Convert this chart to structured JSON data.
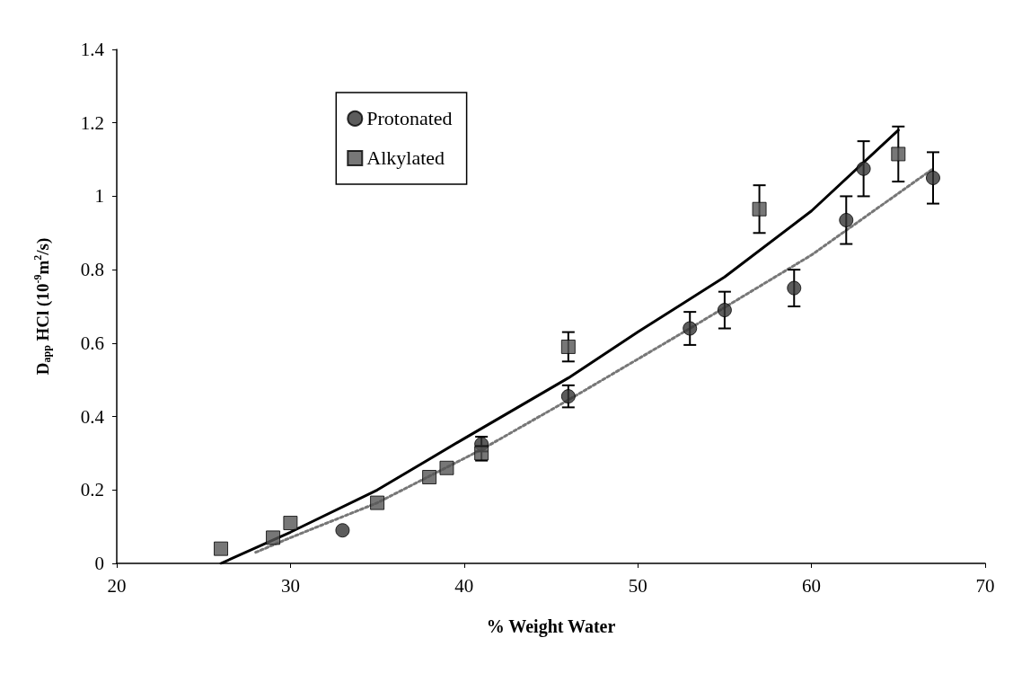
{
  "chart_data": {
    "type": "scatter",
    "xlabel": "% Weight Water",
    "ylabel": "D$_{app}$ HCl (10$^{-9}$m$^{2}$/s)",
    "xlim": [
      20,
      70
    ],
    "xticks": [
      20,
      30,
      40,
      50,
      60,
      70
    ],
    "ylim": [
      0,
      1.4
    ],
    "yticks": [
      0,
      0.2,
      0.4,
      0.6,
      0.8,
      1,
      1.2,
      1.4
    ],
    "grid": false,
    "legend": "top left",
    "series": [
      {
        "name": "Protonated",
        "color": "#333333",
        "marker": "circle",
        "x": [
          33,
          41,
          46,
          53,
          55,
          59,
          62,
          63,
          67
        ],
        "values": [
          0.09,
          0.325,
          0.455,
          0.64,
          0.69,
          0.75,
          0.935,
          1.075,
          1.05
        ],
        "errors": [
          null,
          0.02,
          0.03,
          0.045,
          0.05,
          0.05,
          0.065,
          0.075,
          0.07
        ]
      },
      {
        "name": "Alkylated",
        "color": "#555555",
        "marker": "square",
        "x": [
          26,
          29,
          30,
          35,
          38,
          39,
          41,
          46,
          57,
          65
        ],
        "values": [
          0.04,
          0.07,
          0.11,
          0.165,
          0.235,
          0.26,
          0.3,
          0.59,
          0.965,
          1.115
        ],
        "errors": [
          null,
          null,
          null,
          null,
          null,
          null,
          0.02,
          0.04,
          0.065,
          0.075
        ]
      },
      {
        "type": "line",
        "color": "#000000",
        "line_style": "solid",
        "x": [
          26,
          30,
          35,
          40,
          46,
          50,
          55,
          60,
          65
        ],
        "values": [
          0,
          0.085,
          0.2,
          0.34,
          0.505,
          0.63,
          0.78,
          0.96,
          1.18
        ]
      },
      {
        "type": "line",
        "color": "#777777",
        "line_style": "dotted",
        "x": [
          28,
          30,
          35,
          41,
          46,
          53,
          60,
          67
        ],
        "values": [
          0.03,
          0.07,
          0.165,
          0.31,
          0.445,
          0.64,
          0.84,
          1.075
        ]
      }
    ]
  }
}
